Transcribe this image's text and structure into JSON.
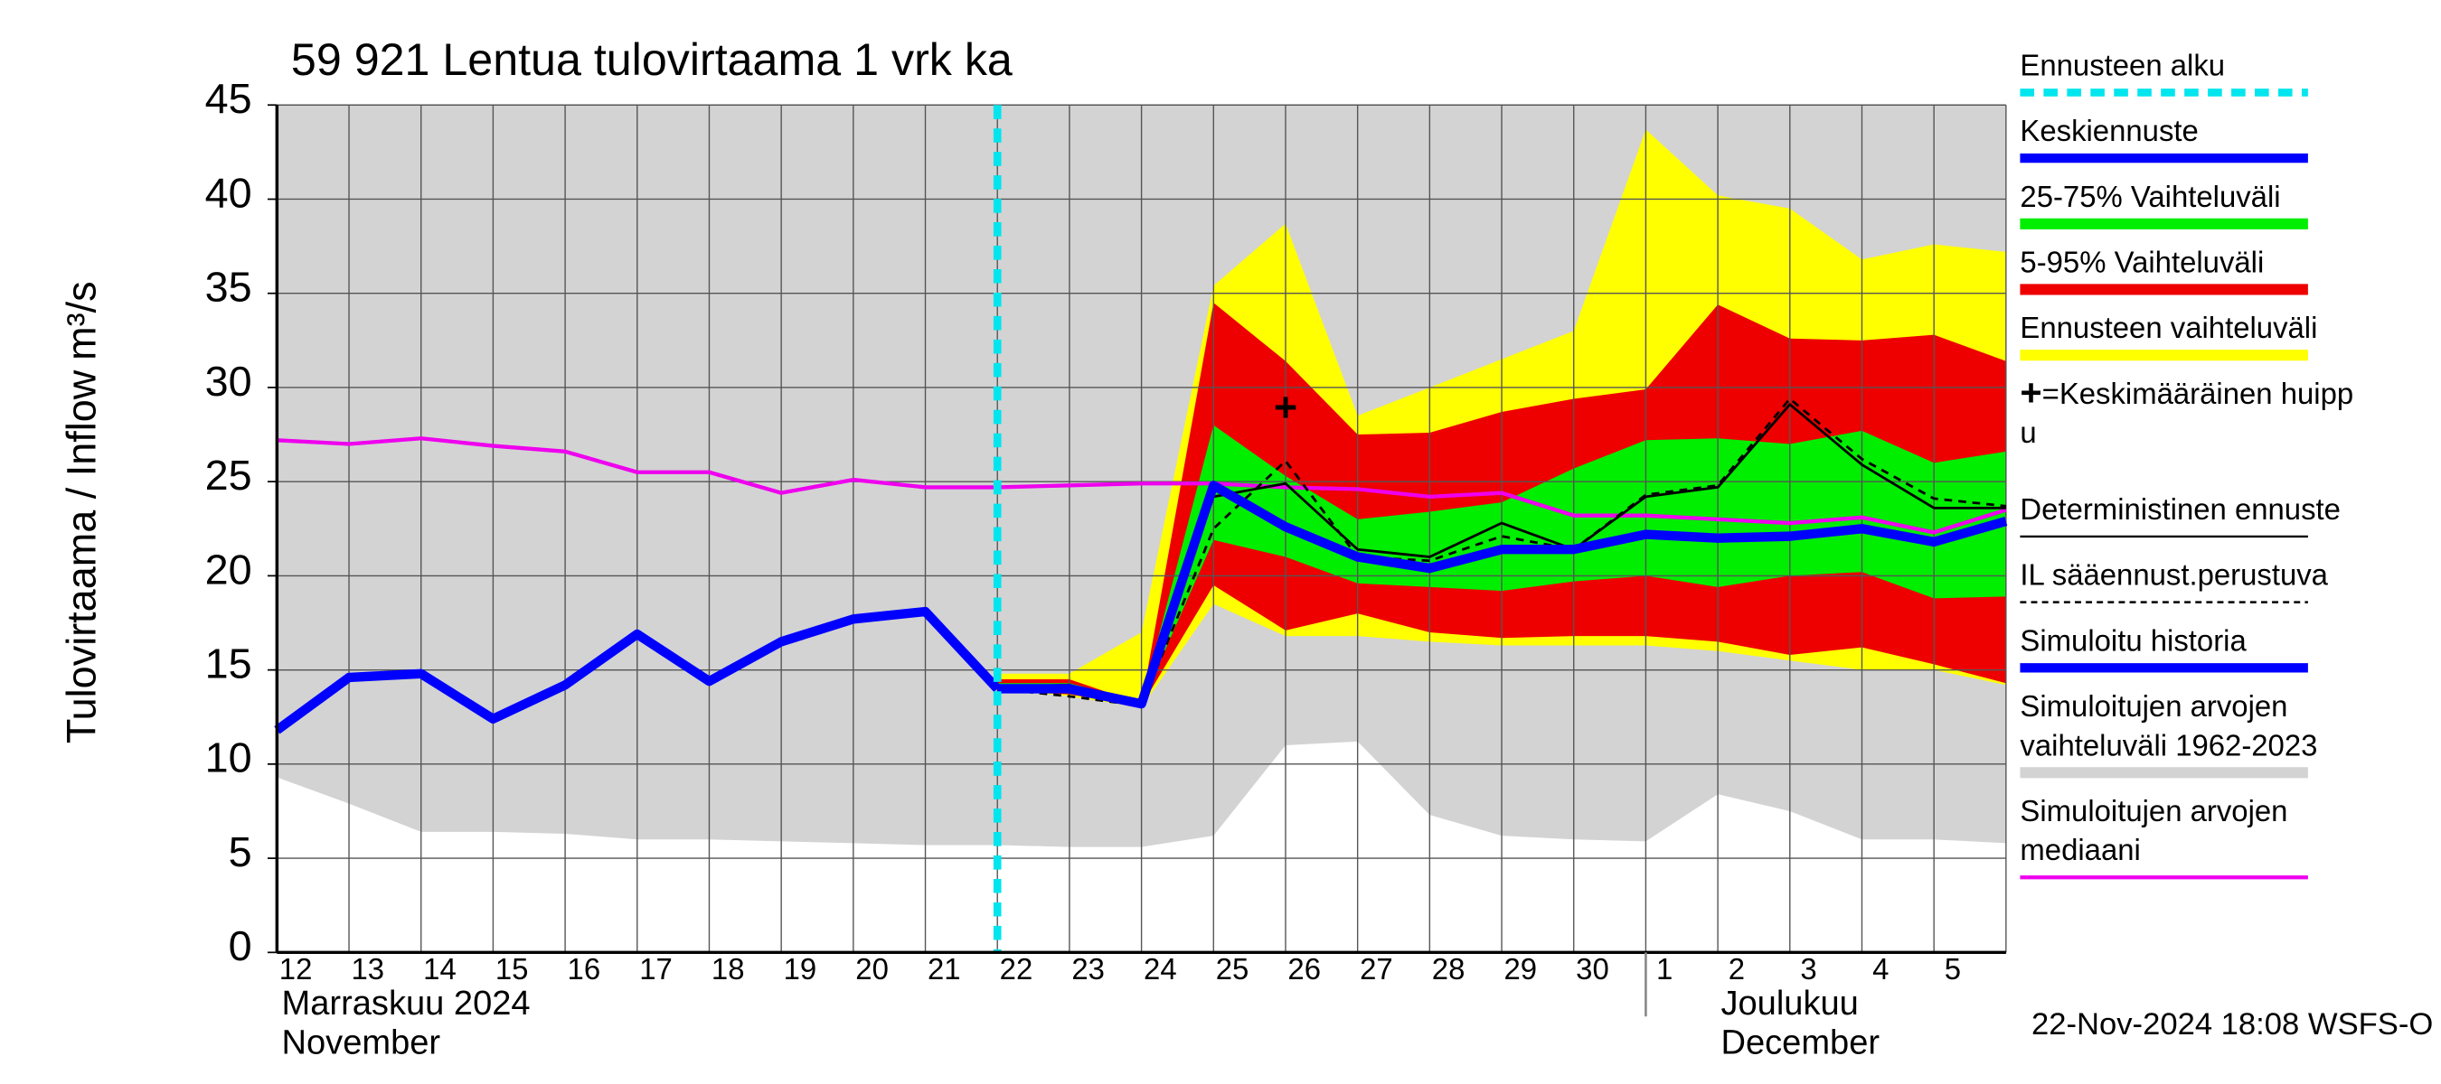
{
  "chart_data": {
    "type": "line",
    "title": "59 921 Lentua tulovirtaama 1 vrk ka",
    "y_label": "Tulovirtaama / Inflow",
    "y_unit": "m³/s",
    "month_labels": [
      {
        "index": 0,
        "lines": [
          "Marraskuu 2024",
          "November"
        ]
      },
      {
        "index": 19,
        "lines": [
          "Joulukuu",
          "December"
        ]
      }
    ],
    "footer": "22-Nov-2024 18:08 WSFS-O",
    "categories": [
      "12",
      "13",
      "14",
      "15",
      "16",
      "17",
      "18",
      "19",
      "20",
      "21",
      "22",
      "23",
      "24",
      "25",
      "26",
      "27",
      "28",
      "29",
      "30",
      "1",
      "2",
      "3",
      "4",
      "5",
      null
    ],
    "ylim": [
      0,
      45
    ],
    "yticks": [
      0,
      5,
      10,
      15,
      20,
      25,
      30,
      35,
      40,
      45
    ],
    "grid": true,
    "series": [
      {
        "name": [
          "Ennusteen alku"
        ],
        "kind": "vline",
        "color": "#00e5ee",
        "index": 10
      },
      {
        "name": [
          "Keskiennuste"
        ],
        "kind": "line",
        "color": "#0000ff",
        "linewidth": "thick",
        "linestyle": "solid",
        "values": [
          null,
          null,
          null,
          null,
          null,
          null,
          null,
          null,
          null,
          null,
          14.0,
          14.0,
          13.2,
          24.8,
          22.6,
          21.0,
          20.4,
          21.4,
          21.4,
          22.2,
          22.0,
          22.1,
          22.5,
          21.8,
          22.9
        ]
      },
      {
        "name": [
          "25-75% Vaihteluväli"
        ],
        "kind": "band",
        "color": "#00ee00",
        "lower": [
          null,
          null,
          null,
          null,
          null,
          null,
          null,
          null,
          null,
          null,
          14.0,
          13.9,
          13.2,
          21.9,
          21.0,
          19.6,
          19.4,
          19.2,
          19.7,
          20.0,
          19.4,
          20.0,
          20.2,
          18.8,
          18.9
        ],
        "upper": [
          null,
          null,
          null,
          null,
          null,
          null,
          null,
          null,
          null,
          null,
          14.3,
          14.3,
          13.3,
          28.0,
          25.3,
          23.0,
          23.4,
          23.9,
          25.7,
          27.2,
          27.3,
          27.0,
          27.7,
          26.0,
          26.6
        ]
      },
      {
        "name": [
          "5-95% Vaihteluväli"
        ],
        "kind": "band",
        "color": "#ee0000",
        "lower": [
          null,
          null,
          null,
          null,
          null,
          null,
          null,
          null,
          null,
          null,
          13.9,
          13.7,
          13.1,
          19.5,
          17.1,
          18.0,
          17.0,
          16.7,
          16.8,
          16.8,
          16.5,
          15.8,
          16.2,
          15.3,
          14.3
        ],
        "upper": [
          null,
          null,
          null,
          null,
          null,
          null,
          null,
          null,
          null,
          null,
          14.5,
          14.5,
          13.2,
          34.5,
          31.4,
          27.5,
          27.6,
          28.7,
          29.4,
          29.9,
          34.4,
          32.6,
          32.5,
          32.8,
          31.4
        ]
      },
      {
        "name": [
          "Ennusteen vaihteluväli"
        ],
        "kind": "band",
        "color": "#ffff00",
        "lower": [
          null,
          null,
          null,
          null,
          null,
          null,
          null,
          null,
          null,
          null,
          14.0,
          13.6,
          13.0,
          18.5,
          16.8,
          16.8,
          16.5,
          16.3,
          16.3,
          16.3,
          16.0,
          15.5,
          15.0,
          15.0,
          14.2
        ],
        "upper": [
          null,
          null,
          null,
          null,
          null,
          null,
          null,
          null,
          null,
          null,
          14.8,
          14.8,
          17.0,
          35.4,
          38.7,
          28.5,
          30.0,
          31.5,
          33.0,
          43.7,
          40.2,
          39.5,
          36.8,
          37.6,
          37.2
        ]
      },
      {
        "name": [
          "=Keskimääräinen huipp",
          "u"
        ],
        "kind": "marker",
        "color": "#000000",
        "index": 14,
        "value": 28.8
      },
      {
        "name": [
          "Deterministinen ennuste"
        ],
        "kind": "line",
        "color": "#000000",
        "linewidth": "thin",
        "linestyle": "solid",
        "values": [
          null,
          null,
          null,
          null,
          null,
          null,
          null,
          null,
          null,
          null,
          14.1,
          14.2,
          13.2,
          24.2,
          24.9,
          21.4,
          21.0,
          22.8,
          21.4,
          24.2,
          24.7,
          29.1,
          25.9,
          23.6,
          23.6
        ]
      },
      {
        "name": [
          "IL sääennust.perustuva"
        ],
        "kind": "line",
        "color": "#000000",
        "linewidth": "thin",
        "linestyle": "dashed",
        "values": [
          null,
          null,
          null,
          null,
          null,
          null,
          null,
          null,
          null,
          null,
          14.0,
          13.6,
          13.1,
          22.5,
          26.1,
          21.0,
          20.8,
          22.1,
          21.4,
          24.3,
          24.8,
          29.4,
          26.2,
          24.1,
          23.7
        ]
      },
      {
        "name": [
          "Simuloitu historia"
        ],
        "kind": "line",
        "color": "#0000ff",
        "linewidth": "thick",
        "linestyle": "solid",
        "values": [
          11.8,
          14.6,
          14.8,
          12.4,
          14.2,
          16.9,
          14.4,
          16.5,
          17.7,
          18.1,
          14.0,
          null,
          null,
          null,
          null,
          null,
          null,
          null,
          null,
          null,
          null,
          null,
          null,
          null,
          null
        ]
      },
      {
        "name": [
          "Simuloitujen arvojen",
          "vaihteluväli 1962-2023"
        ],
        "kind": "band",
        "color": "#d3d3d3",
        "lower": [
          9.3,
          7.9,
          6.4,
          6.4,
          6.3,
          6.0,
          6.0,
          5.9,
          5.8,
          5.7,
          5.7,
          5.6,
          5.6,
          6.2,
          11.0,
          11.2,
          7.3,
          6.2,
          6.0,
          5.9,
          8.4,
          7.5,
          6.0,
          6.0,
          5.8
        ],
        "upper": [
          45,
          45,
          45,
          45,
          45,
          45,
          45,
          45,
          45,
          45,
          45,
          45,
          45,
          45,
          45,
          45,
          45,
          45,
          45,
          45,
          45,
          45,
          45,
          45,
          45
        ]
      },
      {
        "name": [
          "Simuloitujen arvojen",
          "mediaani"
        ],
        "kind": "line",
        "color": "#ee00ee",
        "linewidth": "medium",
        "linestyle": "solid",
        "values": [
          27.2,
          27.0,
          27.3,
          26.9,
          26.6,
          25.5,
          25.5,
          24.4,
          25.1,
          24.7,
          24.7,
          24.8,
          24.9,
          24.9,
          24.7,
          24.6,
          24.2,
          24.4,
          23.2,
          23.2,
          23.0,
          22.8,
          23.1,
          22.3,
          23.5
        ]
      }
    ]
  }
}
